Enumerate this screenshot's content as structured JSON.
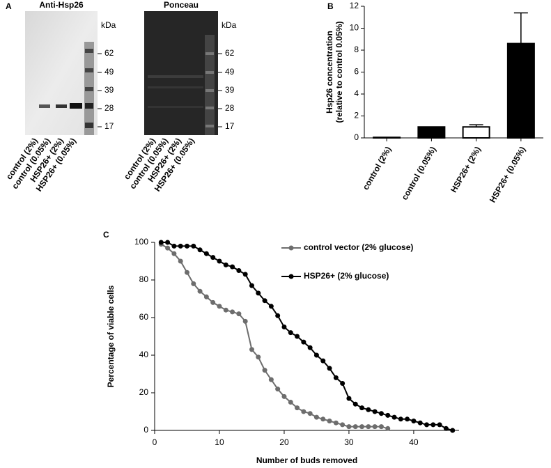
{
  "blots": {
    "label": "A",
    "panels": [
      {
        "title": "Anti-Hsp26",
        "unit": "kDa",
        "markers": [
          62,
          49,
          39,
          28,
          17
        ],
        "lanes": [
          "control (2%)",
          "control (0.05%)",
          "HSP26+ (2%)",
          "HSP26+ (0.05%)"
        ]
      },
      {
        "title": "Ponceau",
        "unit": "kDa",
        "markers": [
          62,
          49,
          39,
          28,
          17
        ],
        "lanes": [
          "control (2%)",
          "control (0.05%)",
          "HSP26+ (2%)",
          "HSP26+ (0.05%)"
        ]
      }
    ]
  },
  "chart_data": [
    {
      "type": "bar",
      "label": "B",
      "y_label": [
        "Hsp26 concentration",
        "(relative to control 0.05%)"
      ],
      "categories": [
        "control (2%)",
        "control (0.05%)",
        "HSP26+ (2%)",
        "HSP26+ (0.05%)"
      ],
      "values": [
        0.05,
        1,
        1,
        8.6
      ],
      "errors": [
        0,
        0,
        0.2,
        2.8
      ],
      "colors": [
        "#000000",
        "#000000",
        "#ffffff",
        "#000000"
      ],
      "ylim": [
        0,
        12
      ],
      "yticks": [
        0,
        2,
        4,
        6,
        8,
        10,
        12
      ]
    },
    {
      "type": "line",
      "label": "C",
      "x_label": "Number of buds removed",
      "y_label": "Percentage of viable cells",
      "xlim": [
        0,
        47
      ],
      "xticks": [
        0,
        10,
        20,
        30,
        40
      ],
      "ylim": [
        0,
        100
      ],
      "yticks": [
        0,
        20,
        40,
        60,
        80,
        100
      ],
      "series": [
        {
          "name": "control vector (2% glucose)",
          "color": "#6d6d6d",
          "x": [
            1,
            2,
            3,
            4,
            5,
            6,
            7,
            8,
            9,
            10,
            11,
            12,
            13,
            14,
            15,
            16,
            17,
            18,
            19,
            20,
            21,
            22,
            23,
            24,
            25,
            26,
            27,
            28,
            29,
            30,
            31,
            32,
            33,
            34,
            35,
            36
          ],
          "values": [
            99,
            97,
            94,
            90,
            84,
            78,
            74,
            71,
            68,
            66,
            64,
            63,
            62,
            58,
            43,
            39,
            32,
            27,
            22,
            18,
            15,
            12,
            10,
            9,
            7,
            6,
            5,
            4,
            3,
            2,
            2,
            2,
            2,
            2,
            2,
            1
          ]
        },
        {
          "name": "HSP26+ (2% glucose)",
          "color": "#000000",
          "x": [
            1,
            2,
            3,
            4,
            5,
            6,
            7,
            8,
            9,
            10,
            11,
            12,
            13,
            14,
            15,
            16,
            17,
            18,
            19,
            20,
            21,
            22,
            23,
            24,
            25,
            26,
            27,
            28,
            29,
            30,
            31,
            32,
            33,
            34,
            35,
            36,
            37,
            38,
            39,
            40,
            41,
            42,
            43,
            44,
            45,
            46
          ],
          "values": [
            100,
            100,
            98,
            98,
            98,
            98,
            96,
            94,
            92,
            90,
            88,
            87,
            85,
            83,
            77,
            73,
            69,
            66,
            61,
            55,
            52,
            50,
            47,
            44,
            40,
            37,
            33,
            28,
            25,
            17,
            14,
            12,
            11,
            10,
            9,
            8,
            7,
            6,
            6,
            5,
            4,
            3,
            3,
            3,
            1,
            0
          ]
        }
      ]
    }
  ]
}
